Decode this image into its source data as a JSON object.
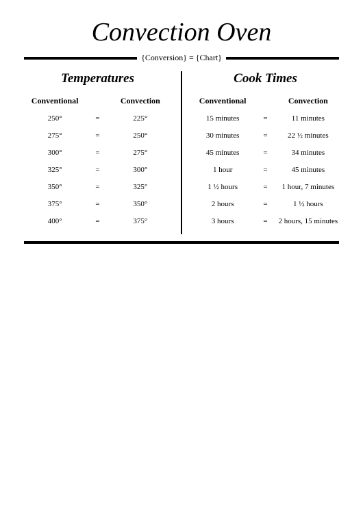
{
  "title": "Convection Oven",
  "subtitle": "{Conversion} = {Chart}",
  "colors": {
    "text": "#000000",
    "background": "#ffffff",
    "rule": "#000000"
  },
  "typography": {
    "title_fontsize": 38,
    "section_fontsize": 19,
    "header_fontsize": 12,
    "body_fontsize": 11,
    "subtitle_fontsize": 12
  },
  "left": {
    "section_title": "Temperatures",
    "col_left_header": "Conventional",
    "col_right_header": "Convection",
    "separator": "=",
    "rows": [
      {
        "left": "250°",
        "right": "225°"
      },
      {
        "left": "275°",
        "right": "250°"
      },
      {
        "left": "300°",
        "right": "275°"
      },
      {
        "left": "325°",
        "right": "300°"
      },
      {
        "left": "350°",
        "right": "325°"
      },
      {
        "left": "375°",
        "right": "350°"
      },
      {
        "left": "400°",
        "right": "375°"
      }
    ]
  },
  "right": {
    "section_title": "Cook Times",
    "col_left_header": "Conventional",
    "col_right_header": "Convection",
    "separator": "=",
    "rows": [
      {
        "left": "15 minutes",
        "right": "11 minutes"
      },
      {
        "left": "30 minutes",
        "right": "22 ½ minutes"
      },
      {
        "left": "45 minutes",
        "right": "34 minutes"
      },
      {
        "left": "1 hour",
        "right": "45 minutes"
      },
      {
        "left": "1 ½ hours",
        "right": "1 hour, 7 minutes"
      },
      {
        "left": "2 hours",
        "right": "1 ½ hours"
      },
      {
        "left": "3 hours",
        "right": "2 hours, 15 minutes"
      }
    ]
  }
}
